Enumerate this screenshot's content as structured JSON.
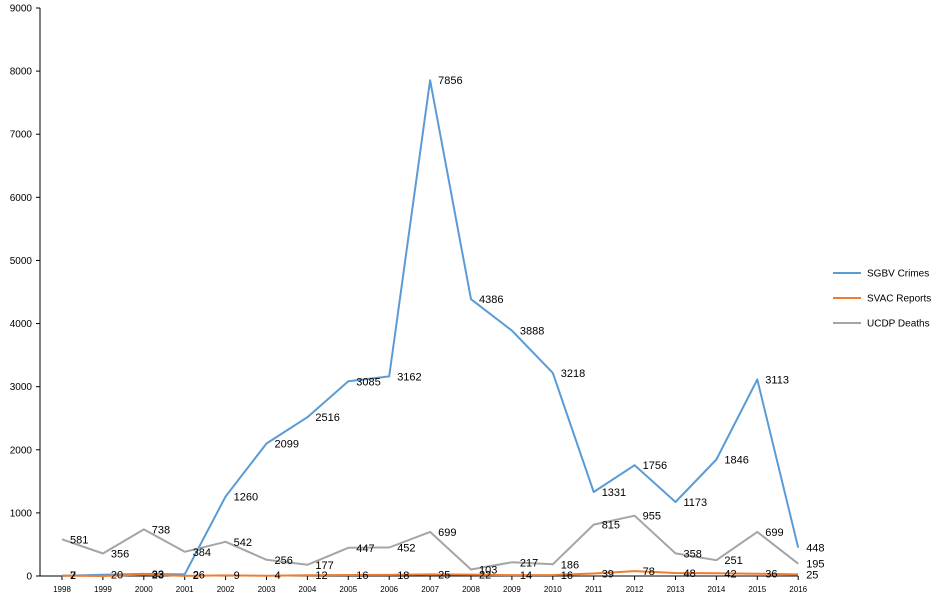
{
  "chart_data": {
    "type": "line",
    "title": "",
    "xlabel": "",
    "ylabel": "",
    "ylim": [
      0,
      9000
    ],
    "y_ticks": [
      "0",
      "1000",
      "2000",
      "3000",
      "4000",
      "5000",
      "6000",
      "7000",
      "8000",
      "9000"
    ],
    "categories": [
      "1998",
      "1999",
      "2000",
      "2001",
      "2002",
      "2003",
      "2004",
      "2005",
      "2006",
      "2007",
      "2008",
      "2009",
      "2010",
      "2011",
      "2012",
      "2013",
      "2014",
      "2015",
      "2016"
    ],
    "grid": false,
    "legend_position": "right",
    "series": [
      {
        "name": "SGBV Crimes",
        "color": "#5B9BD5",
        "values": [
          2,
          20,
          33,
          26,
          1260,
          2099,
          2516,
          3085,
          3162,
          7856,
          4386,
          3888,
          3218,
          1331,
          1756,
          1173,
          1846,
          3113,
          448
        ],
        "labels": [
          "2",
          "20",
          "33",
          "26",
          "1260",
          "2099",
          "2516",
          "3085",
          "3162",
          "7856",
          "4386",
          "3888",
          "3218",
          "1331",
          "1756",
          "1173",
          "1846",
          "3113",
          "448"
        ]
      },
      {
        "name": "SVAC Reports",
        "color": "#ED7D31",
        "values": [
          7,
          0,
          23,
          2,
          9,
          4,
          12,
          16,
          18,
          25,
          22,
          14,
          16,
          39,
          78,
          48,
          42,
          36,
          25
        ],
        "labels": [
          "7",
          "",
          "23",
          "2",
          "9",
          "4",
          "12",
          "16",
          "18",
          "25",
          "22",
          "14",
          "16",
          "39",
          "78",
          "48",
          "42",
          "36",
          "25"
        ]
      },
      {
        "name": "UCDP Deaths",
        "color": "#A5A5A5",
        "values": [
          581,
          356,
          738,
          384,
          542,
          256,
          177,
          447,
          452,
          699,
          103,
          217,
          186,
          815,
          955,
          358,
          251,
          699,
          195
        ],
        "labels": [
          "581",
          "356",
          "738",
          "384",
          "542",
          "256",
          "177",
          "447",
          "452",
          "699",
          "103",
          "217",
          "186",
          "815",
          "955",
          "358",
          "251",
          "699",
          "195"
        ]
      }
    ]
  }
}
